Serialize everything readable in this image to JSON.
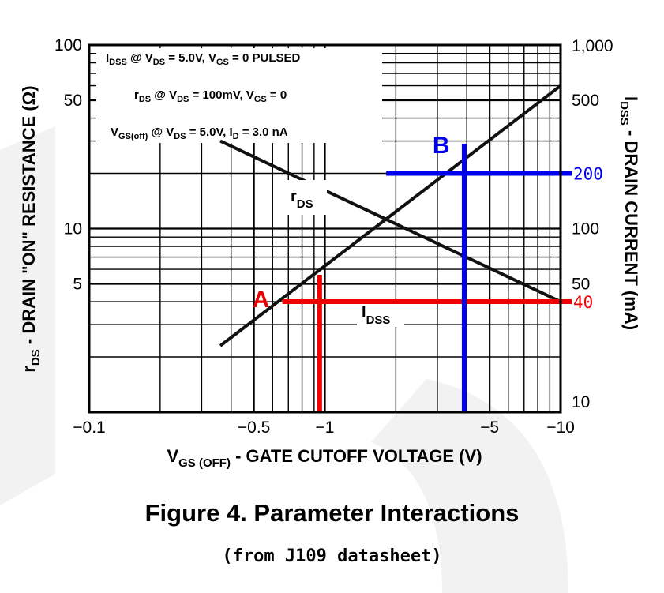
{
  "chart_data": {
    "type": "line",
    "x_axis": {
      "label_main": "V",
      "label_sub": "GS (OFF)",
      "label_rest": " - GATE CUTOFF VOLTAGE (V)",
      "scale": "log",
      "range": [
        -0.1,
        -10
      ],
      "ticks": [
        {
          "value": -0.1,
          "label": "−0.1"
        },
        {
          "value": -0.5,
          "label": "−0.5"
        },
        {
          "value": -1,
          "label": "−1"
        },
        {
          "value": -5,
          "label": "−5"
        },
        {
          "value": -10,
          "label": "−10"
        }
      ]
    },
    "y_left": {
      "label_main": "r",
      "label_sub": "DS",
      "label_rest": " - DRAIN \"ON\" RESISTANCE (Ω)",
      "scale": "log",
      "range": [
        1,
        100
      ],
      "ticks": [
        {
          "value": 100,
          "label": "100"
        },
        {
          "value": 50,
          "label": "50"
        },
        {
          "value": 10,
          "label": "10"
        },
        {
          "value": 5,
          "label": "5"
        }
      ]
    },
    "y_right": {
      "label_main": "I",
      "label_sub": "DSS",
      "label_rest": " - DRAIN CURRENT (mA)",
      "scale": "log",
      "range": [
        10,
        1000
      ],
      "ticks": [
        {
          "value": 1000,
          "label": "1,000"
        },
        {
          "value": 500,
          "label": "500"
        },
        {
          "value": 100,
          "label": "100"
        },
        {
          "value": 50,
          "label": "50"
        },
        {
          "value": 10,
          "label": "10"
        }
      ]
    },
    "grid": true,
    "conditions": [
      {
        "parts": [
          "I",
          "DSS",
          " @ V",
          "DS",
          " = 5.0V, V",
          "GS",
          " = 0 PULSED"
        ]
      },
      {
        "parts": [
          "r",
          "DS",
          " @ V",
          "DS",
          " = 100mV, V",
          "GS",
          " = 0"
        ]
      },
      {
        "parts": [
          "V",
          "GS(off)",
          " @ V",
          "DS",
          " = 5.0V, I",
          "D",
          " = 3.0 nA"
        ]
      }
    ],
    "series": [
      {
        "name_main": "r",
        "name_sub": "DS",
        "axis": "left",
        "color": "#111111",
        "x": [
          -0.36,
          -10.0
        ],
        "y": [
          30.0,
          4.0
        ]
      },
      {
        "name_main": "I",
        "name_sub": "DSS",
        "axis": "right",
        "color": "#111111",
        "x": [
          -0.36,
          -10.0
        ],
        "y": [
          23.0,
          600.0
        ]
      }
    ],
    "markers": [
      {
        "label": "A",
        "color": "#ee0000",
        "x": -0.95,
        "y_right": 40,
        "value_label": "40",
        "h_from": -0.66,
        "v_top_left": 5.6
      },
      {
        "label": "B",
        "color": "#0000ee",
        "x": -3.9,
        "y_right": 200,
        "value_label": "200",
        "h_from": -1.82,
        "v_top_right": 290
      }
    ]
  },
  "caption": "Figure 4. Parameter Interactions",
  "source": "(from J109 datasheet)"
}
